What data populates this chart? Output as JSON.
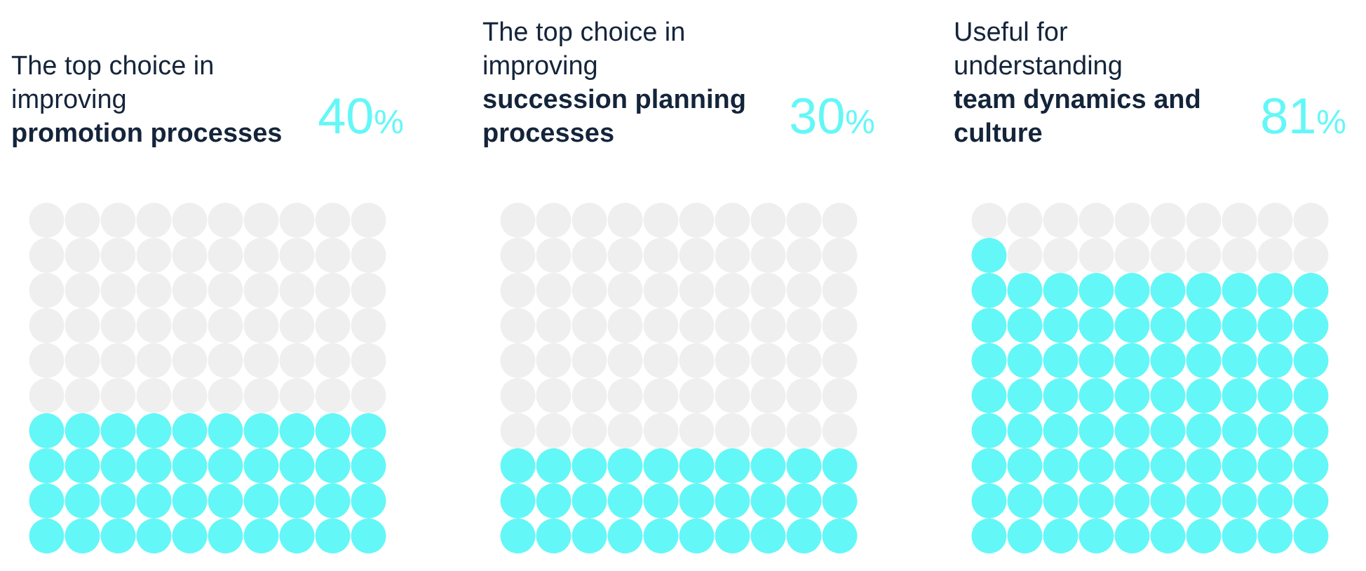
{
  "chart_data": [
    {
      "type": "other",
      "title": "The top choice in improving",
      "subtitle": "promotion processes",
      "values": [
        40
      ],
      "value_labels": [
        "40%"
      ],
      "color": "#64f7f7"
    },
    {
      "type": "other",
      "title": "The top choice in improving",
      "subtitle": "succession planning processes",
      "values": [
        30
      ],
      "value_labels": [
        "30%"
      ],
      "color": "#64f7f7"
    },
    {
      "type": "other",
      "title": "Useful for understanding",
      "subtitle": "team dynamics and culture",
      "values": [
        81
      ],
      "value_labels": [
        "81%"
      ],
      "color": "#64f7f7"
    }
  ]
}
